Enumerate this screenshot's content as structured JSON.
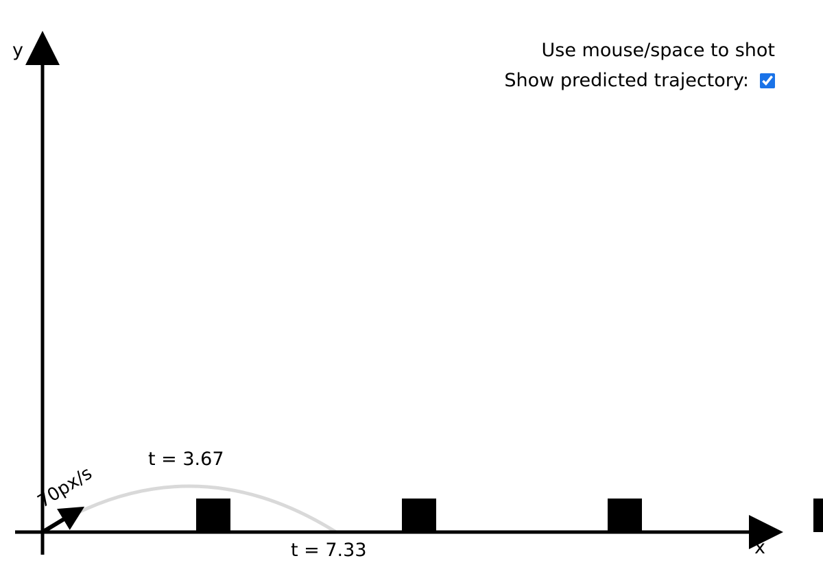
{
  "hud": {
    "instructions": "Use mouse/space to shot",
    "trajectory_label": "Show predicted trajectory:",
    "trajectory_checked": true
  },
  "axes": {
    "x_label": "x",
    "y_label": "y"
  },
  "launcher": {
    "speed_label": "70px/s",
    "angle_deg": 35
  },
  "trajectory": {
    "peak_time_label": "t = 3.67",
    "landing_time_label": "t = 7.33",
    "color": "#d9d9d9"
  },
  "obstacles": {
    "count": 4,
    "color": "#000000"
  }
}
